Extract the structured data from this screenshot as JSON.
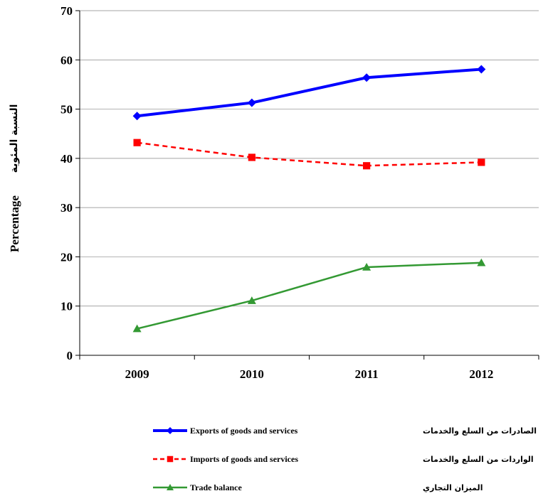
{
  "chart_data": {
    "type": "line",
    "x": [
      "2009",
      "2010",
      "2011",
      "2012"
    ],
    "ylim": [
      0,
      70
    ],
    "yticks": [
      0,
      10,
      20,
      30,
      40,
      50,
      60,
      70
    ],
    "ylabel": "Percentage",
    "ylabel_ar": "النسبة المئوية",
    "grid": true,
    "legend_position": "bottom",
    "series": [
      {
        "name": "Exports of goods and services",
        "name_ar": "الصادرات من السلع والخدمات",
        "values": [
          48.6,
          51.3,
          56.4,
          58.1
        ],
        "color": "#0000FF",
        "marker": "diamond",
        "dash": "solid"
      },
      {
        "name": "Imports of goods and services",
        "name_ar": "الواردات من السلع والخدمات",
        "values": [
          43.2,
          40.2,
          38.5,
          39.2
        ],
        "color": "#FF0000",
        "marker": "square",
        "dash": "dashed"
      },
      {
        "name": "Trade balance",
        "name_ar": "الميزان التجاري",
        "values": [
          5.4,
          11.1,
          17.9,
          18.8
        ],
        "color": "#339933",
        "marker": "triangle",
        "dash": "solid"
      }
    ]
  }
}
